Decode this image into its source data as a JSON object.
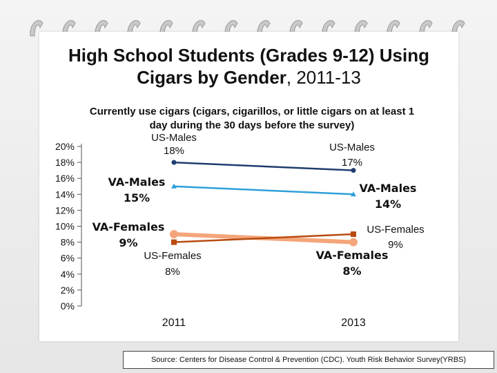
{
  "title_main": "High School Students (Grades 9-12) Using Cigars by Gender",
  "title_suffix": ", 2011-13",
  "subtitle": "Currently use cigars (cigars, cigarillos, or little cigars on at least 1 day during the 30 days before the survey)",
  "source": "Source: Centers for Disease Control & Prevention (CDC). Youth Risk Behavior Survey(YRBS)",
  "chart_data": {
    "type": "line",
    "categories": [
      "2011",
      "2013"
    ],
    "y_ticks": [
      "20%",
      "18%",
      "16%",
      "14%",
      "12%",
      "10%",
      "8%",
      "6%",
      "4%",
      "2%",
      "0%"
    ],
    "ylim": [
      0,
      20
    ],
    "grid": false,
    "series": [
      {
        "name": "US-Males",
        "values": [
          18,
          17
        ],
        "labels": [
          "US-Males 18%",
          "US-Males 17%"
        ],
        "color": "#1f3d6e",
        "marker": "circle"
      },
      {
        "name": "VA-Males",
        "values": [
          15,
          14
        ],
        "labels": [
          "VA-Males 15%",
          "VA-Males 14%"
        ],
        "color": "#2e9fd8",
        "marker": "triangle"
      },
      {
        "name": "VA-Females",
        "values": [
          9,
          8
        ],
        "labels": [
          "VA-Females 9%",
          "VA-Females 8%"
        ],
        "color": "#f4a57a",
        "marker": "circle"
      },
      {
        "name": "US-Females",
        "values": [
          8,
          9
        ],
        "labels": [
          "US-Females 8%",
          "US-Females 9%"
        ],
        "color": "#b84a10",
        "marker": "square"
      }
    ]
  }
}
